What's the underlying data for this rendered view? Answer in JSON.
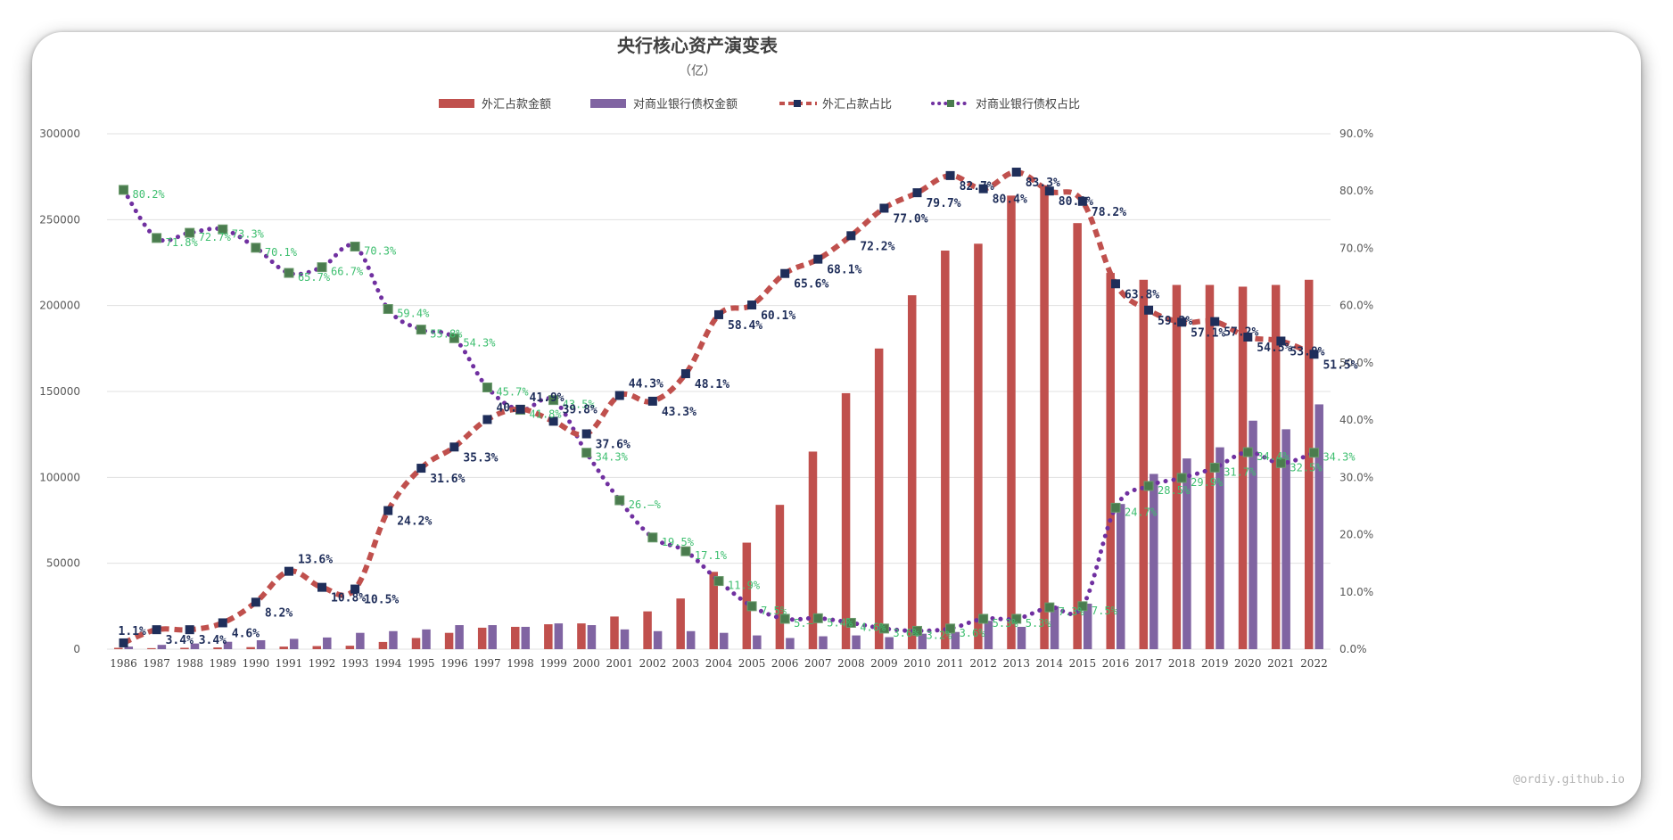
{
  "watermark": "@ordiy.github.io",
  "colors": {
    "fx_bar": "#c0504d",
    "claims_bar": "#8064a2",
    "fx_line": "#c0504d",
    "fx_marker": "#1f2e5a",
    "claims_line": "#7030a0",
    "claims_marker": "#4a7c4e",
    "fx_label": "#1f2e5a",
    "claims_label": "#3fbf70",
    "grid": "#e0e0e0",
    "axis_text": "#595959"
  },
  "chart_data": {
    "type": "bar",
    "title": "央行核心资产演变表",
    "subtitle": "（亿）",
    "legend_position": "top",
    "grid": true,
    "categories": [
      "1986",
      "1987",
      "1988",
      "1989",
      "1990",
      "1991",
      "1992",
      "1993",
      "1994",
      "1995",
      "1996",
      "1997",
      "1998",
      "1999",
      "2000",
      "2001",
      "2002",
      "2003",
      "2004",
      "2005",
      "2006",
      "2007",
      "2008",
      "2009",
      "2010",
      "2011",
      "2012",
      "2013",
      "2014",
      "2015",
      "2016",
      "2017",
      "2018",
      "2019",
      "2020",
      "2021",
      "2022"
    ],
    "y_left": {
      "min": 0,
      "max": 300000,
      "ticks": [
        "0",
        "50000",
        "100000",
        "150000",
        "200000",
        "250000",
        "300000"
      ]
    },
    "y_right": {
      "min": 0,
      "max": 90,
      "ticks": [
        "0.0%",
        "10.0%",
        "20.0%",
        "30.0%",
        "40.0%",
        "50.0%",
        "60.0%",
        "70.0%",
        "80.0%",
        "90.0%"
      ]
    },
    "series": [
      {
        "name": "外汇占款金额",
        "kind": "bar",
        "axis": "left",
        "values": [
          800,
          600,
          800,
          1000,
          1200,
          1500,
          1800,
          2000,
          4200,
          6500,
          9500,
          12500,
          13000,
          14500,
          15000,
          19000,
          22000,
          29500,
          45000,
          62000,
          84000,
          115000,
          149000,
          175000,
          206000,
          232000,
          236000,
          264000,
          270000,
          248000,
          219000,
          215000,
          212000,
          212000,
          211000,
          212000,
          215000
        ]
      },
      {
        "name": "对商业银行债权金额",
        "kind": "bar",
        "axis": "left",
        "values": [
          1500,
          2500,
          3300,
          4300,
          5200,
          6000,
          6800,
          9500,
          10500,
          11500,
          14000,
          14000,
          13000,
          15000,
          14000,
          11500,
          10500,
          10500,
          9500,
          8000,
          6500,
          7500,
          8000,
          7000,
          9000,
          10000,
          16500,
          13000,
          25000,
          26500,
          84500,
          102000,
          111000,
          117500,
          133000,
          128000,
          142500
        ]
      },
      {
        "name": "外汇占款占比",
        "kind": "line",
        "style": "dashed",
        "axis": "right",
        "values": [
          1.1,
          3.4,
          3.4,
          4.6,
          8.2,
          13.6,
          10.8,
          10.5,
          24.2,
          31.6,
          35.3,
          40.1,
          41.9,
          39.8,
          37.6,
          44.3,
          43.3,
          48.1,
          58.4,
          60.1,
          65.6,
          68.1,
          72.2,
          77.0,
          79.7,
          82.7,
          80.4,
          83.3,
          80.0,
          78.2,
          63.8,
          59.2,
          57.1,
          57.2,
          54.5,
          53.8,
          51.5
        ],
        "labels": [
          "1.1%",
          "3.4%",
          "3.4%",
          "4.6%",
          "8.2%",
          "13.6%",
          "10.8%",
          "10.5%",
          "24.2%",
          "31.6%",
          "35.3%",
          "40.—",
          "41.9%",
          "39.8%",
          "37.6%",
          "44.3%",
          "43.3%",
          "48.1%",
          "58.4%",
          "60.1%",
          "65.6%",
          "68.1%",
          "72.2%",
          "77.0%",
          "79.7%",
          "82.7%",
          "80.4%",
          "83.3%",
          "80.0%",
          "78.2%",
          "63.8%",
          "59.2%",
          "57.1%",
          "57.2%",
          "54.5%",
          "53.8%",
          "51.5%"
        ]
      },
      {
        "name": "对商业银行债权占比",
        "kind": "line",
        "style": "dotted",
        "axis": "right",
        "values": [
          80.2,
          71.8,
          72.7,
          73.3,
          70.1,
          65.7,
          66.7,
          70.3,
          59.4,
          55.8,
          54.3,
          45.7,
          41.8,
          43.5,
          34.3,
          26.0,
          19.5,
          17.1,
          11.9,
          7.5,
          5.3,
          5.4,
          4.6,
          3.6,
          3.2,
          3.6,
          5.3,
          5.3,
          7.3,
          7.5,
          24.7,
          28.5,
          29.9,
          31.7,
          34.4,
          32.5,
          34.3
        ],
        "labels": [
          "80.2%",
          "71.8%",
          "72.7%",
          "73.3%",
          "70.1%",
          "65.7%",
          "66.7%",
          "70.3%",
          "59.4%",
          "55.8%",
          "54.3%",
          "45.7%",
          "41.8%",
          "43.5%",
          "34.3%",
          "26.—%",
          "19.5%",
          "17.1%",
          "11.9%",
          "7.5%",
          "5.—",
          "5.4%",
          "4.6%",
          "3.6%",
          "3.2%",
          "3.6%",
          "5.3%",
          "5.3%",
          "7.3%",
          "7.5%",
          "24.7%",
          "28.5%",
          "29.9%",
          "31.7%",
          "34.4%",
          "32.5%",
          "34.3%"
        ]
      }
    ]
  }
}
